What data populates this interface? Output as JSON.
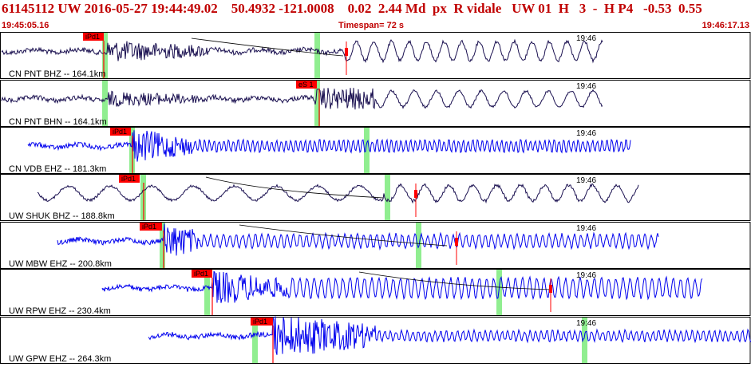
{
  "header": {
    "title": "61145112 UW 2016-05-27 19:44:49.02    50.4932 -121.0008    0.02  2.44 Md  px  R vidale   UW 01  H   3  -  H P4   -0.53  0.55",
    "start_time": "19:45:05.16",
    "timespan": "Timespan=  72 s",
    "end_time": "19:46:17.13"
  },
  "colors": {
    "header_text": "#c00000",
    "trace_dark": "#1a1050",
    "trace_blue": "#0000ee",
    "pick_red": "#ff0000",
    "window_green": "#90ee90",
    "panel_border": "#000000"
  },
  "traces": [
    {
      "label": "CN PNT BHZ -- 164.1km",
      "time_mark": "19:46",
      "pick": "iPd1",
      "color": "trace_dark"
    },
    {
      "label": "CN PNT BHN -- 164.1km",
      "time_mark": "19:46",
      "pick": "eS 1",
      "color": "trace_dark"
    },
    {
      "label": "CN VDB EHZ -- 181.3km",
      "time_mark": "19:46",
      "pick": "iPd1",
      "color": "trace_blue"
    },
    {
      "label": "UW SHUK BHZ -- 188.8km",
      "time_mark": "19:46",
      "pick": "iPd1",
      "color": "trace_dark"
    },
    {
      "label": "UW MBW EHZ -- 200.8km",
      "time_mark": "19:46",
      "pick": "iPd1",
      "color": "trace_blue"
    },
    {
      "label": "UW RPW EHZ -- 230.4km",
      "time_mark": "19:46",
      "pick": "iPd1",
      "color": "trace_blue"
    },
    {
      "label": "UW GPW EHZ -- 264.3km",
      "time_mark": "19:46",
      "pick": "iPd1",
      "color": "trace_blue"
    }
  ]
}
